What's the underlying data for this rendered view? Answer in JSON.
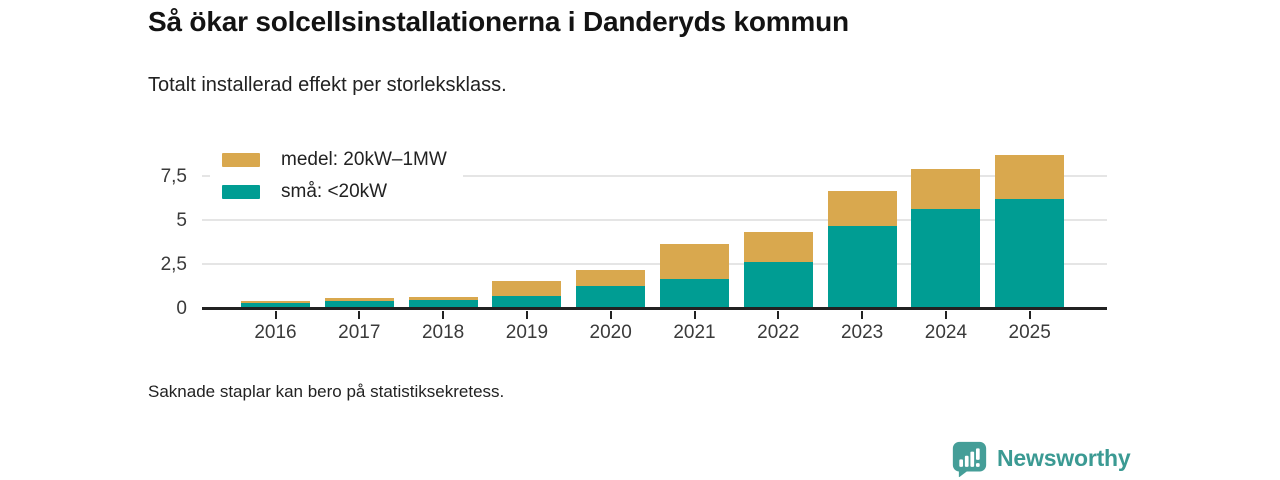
{
  "chart_data": {
    "type": "bar",
    "stacked": true,
    "title": "Så ökar solcellsinstallationerna i Danderyds kommun",
    "subtitle": "Totalt installerad effekt per storleksklass.",
    "categories": [
      "2016",
      "2017",
      "2018",
      "2019",
      "2020",
      "2021",
      "2022",
      "2023",
      "2024",
      "2025"
    ],
    "series": [
      {
        "key": "sma",
        "name": "små: <20kW",
        "color": "#009d93",
        "values": [
          0.3,
          0.4,
          0.45,
          0.7,
          1.25,
          1.65,
          2.6,
          4.65,
          5.6,
          6.2
        ]
      },
      {
        "key": "medel",
        "name": "medel: 20kW–1MW",
        "color": "#d9a84e",
        "values": [
          0.1,
          0.15,
          0.15,
          0.85,
          0.9,
          2.0,
          1.7,
          2.0,
          2.3,
          2.5
        ]
      }
    ],
    "y_axis": {
      "ticks": [
        {
          "label": "0",
          "value": 0
        },
        {
          "label": "2,5",
          "value": 2.5
        },
        {
          "label": "5",
          "value": 5
        },
        {
          "label": "7,5",
          "value": 7.5
        }
      ],
      "range": [
        0,
        9
      ]
    },
    "legend_order": [
      "medel",
      "sma"
    ],
    "legend_position": "top-left",
    "grid": "horizontal"
  },
  "footnote": {
    "text": "Saknade staplar kan bero på statistiksekretess."
  },
  "branding": {
    "name": "Newsworthy",
    "color": "#3b9a93",
    "icon_color": "#459e98"
  }
}
